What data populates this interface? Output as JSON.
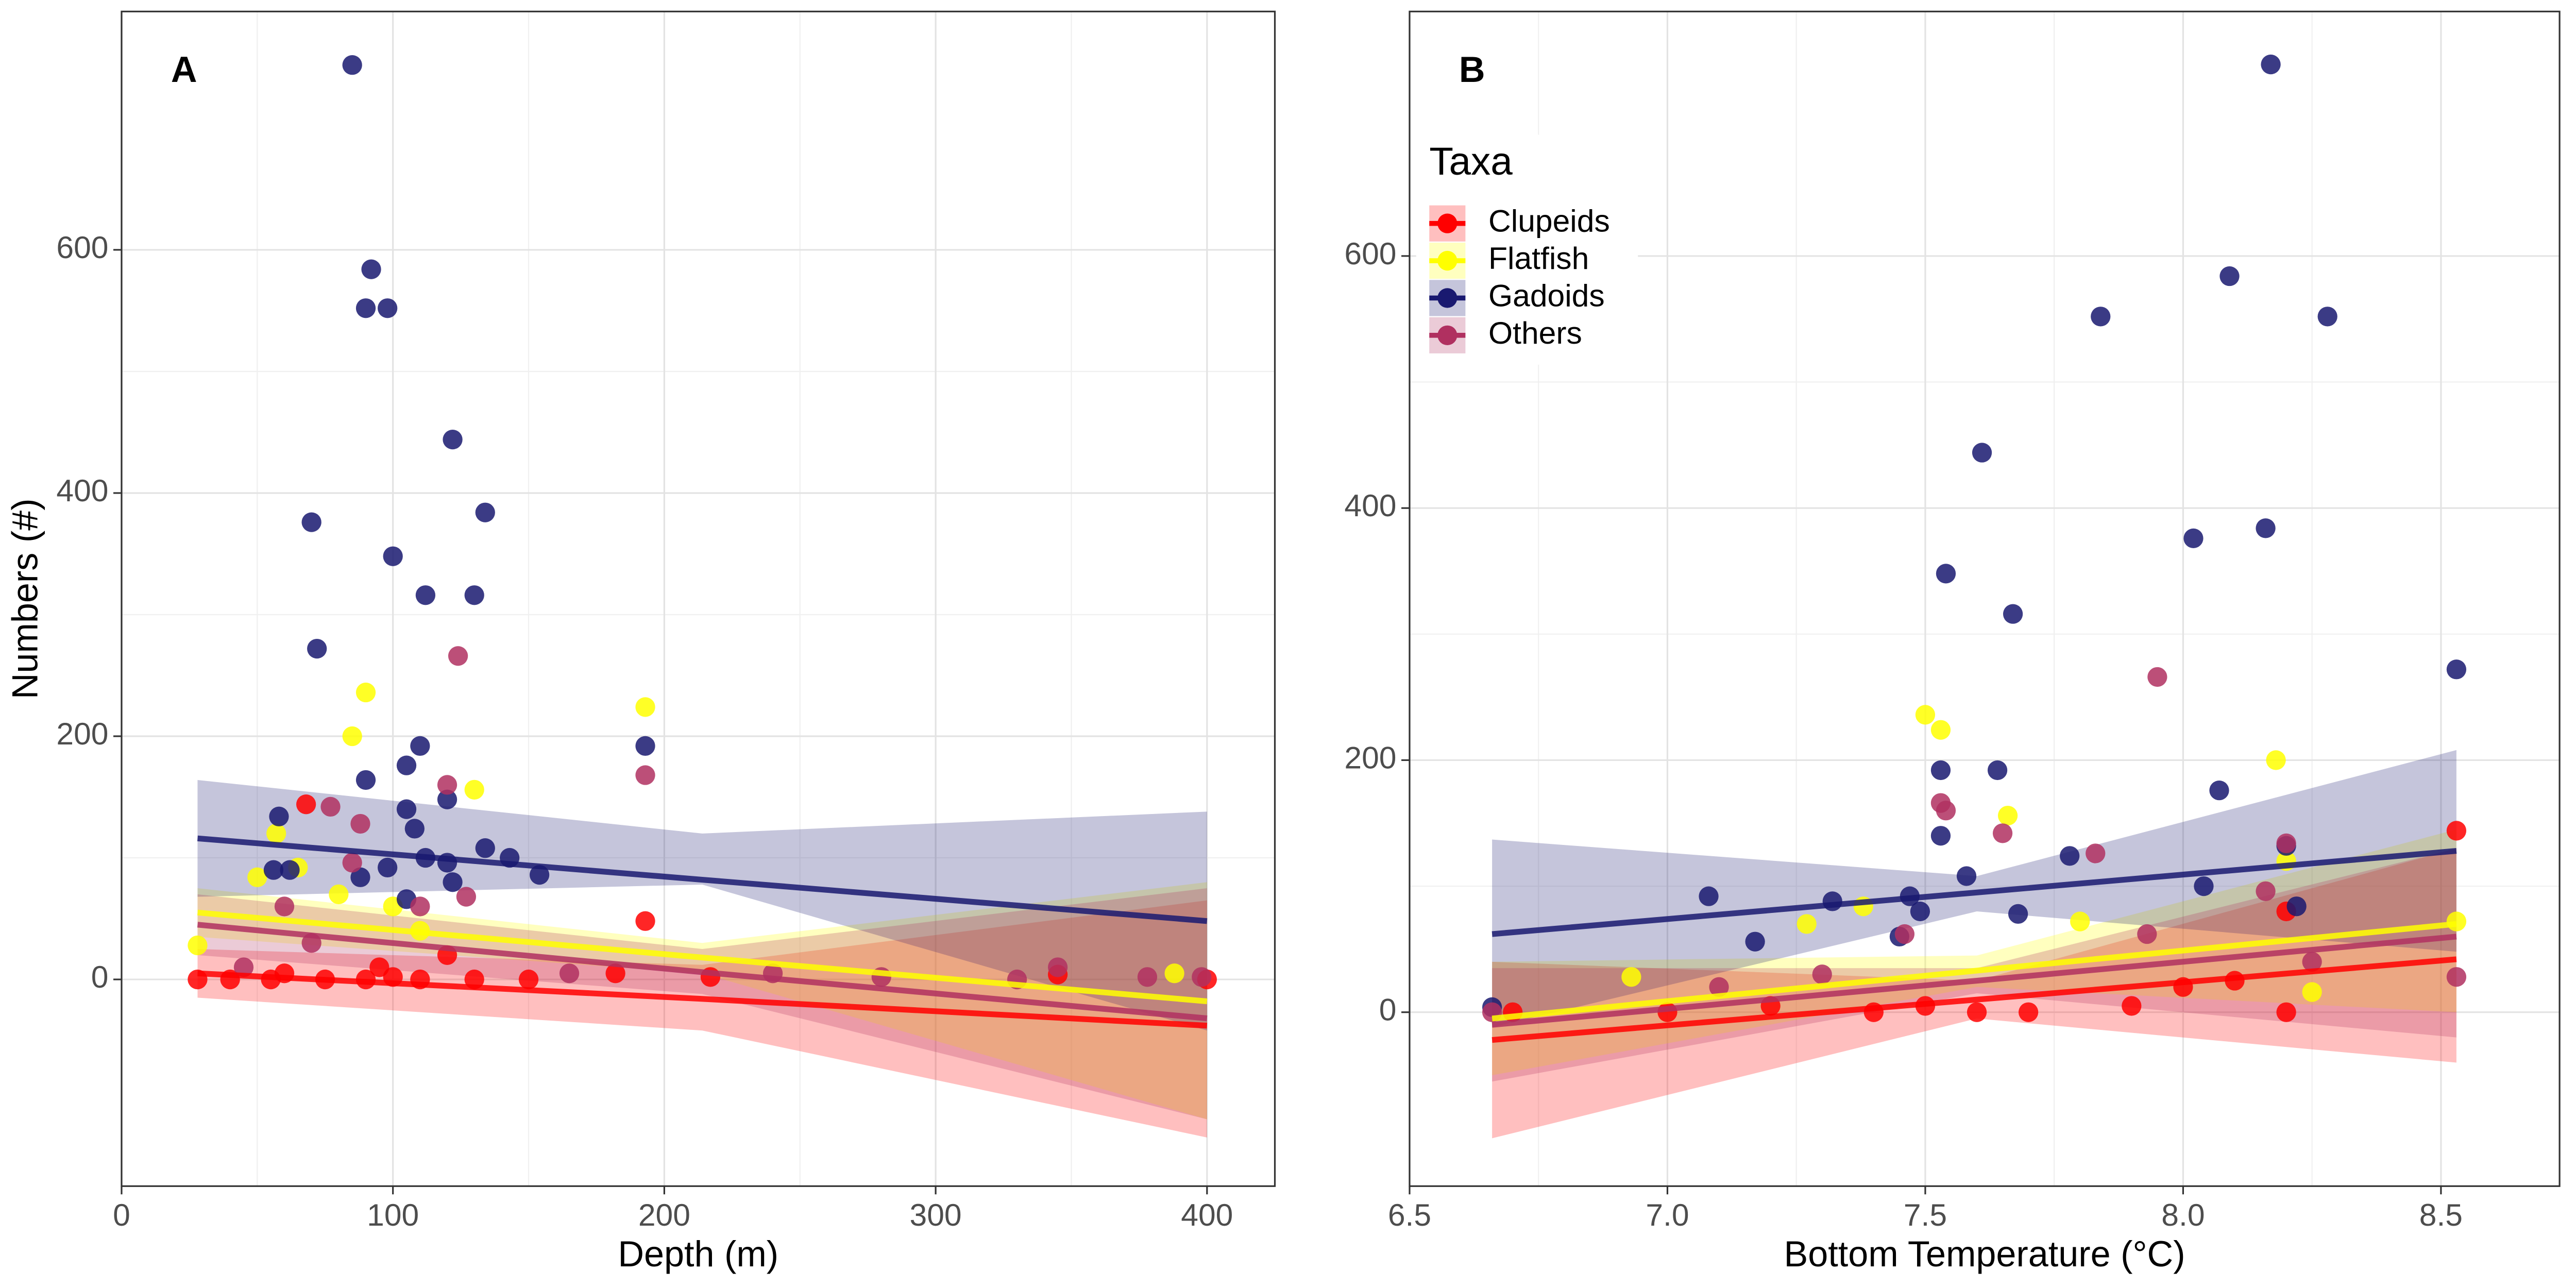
{
  "chart_data": [
    {
      "type": "scatter",
      "panel_label": "A",
      "x_label": "Depth (m)",
      "y_label": "Numbers (#)",
      "xlim": [
        0,
        425
      ],
      "ylim": [
        -170,
        796
      ],
      "xticks": [
        0,
        100,
        200,
        300,
        400
      ],
      "yticks": [
        0,
        200,
        400,
        600
      ],
      "grid": true,
      "series": [
        {
          "name": "Clupeids",
          "color": "#ff0000",
          "x": [
            68,
            193,
            28,
            40,
            55,
            75,
            90,
            100,
            110,
            130,
            150,
            182,
            217,
            345,
            400,
            120,
            95,
            60
          ],
          "values": [
            144,
            48,
            0,
            0,
            0,
            0,
            0,
            2,
            0,
            0,
            0,
            5,
            2,
            4,
            0,
            20,
            10,
            5
          ],
          "fit": {
            "x": [
              28,
              214,
              400
            ],
            "values": [
              5,
              -16,
              -38
            ],
            "upper": [
              25,
              12,
              65
            ],
            "lower": [
              -15,
              -42,
              -130
            ]
          }
        },
        {
          "name": "Flatfish",
          "color": "#ffff00",
          "x": [
            90,
            85,
            193,
            130,
            57,
            65,
            50,
            28,
            80,
            388,
            100,
            110
          ],
          "values": [
            236,
            200,
            224,
            156,
            120,
            92,
            84,
            28,
            70,
            5,
            60,
            40
          ],
          "fit": {
            "x": [
              28,
              214,
              400
            ],
            "values": [
              55,
              18,
              -18
            ],
            "upper": [
              75,
              30,
              80
            ],
            "lower": [
              35,
              5,
              -115
            ]
          }
        },
        {
          "name": "Gadoids",
          "color": "#191970",
          "x": [
            85,
            92,
            90,
            98,
            70,
            100,
            134,
            122,
            112,
            130,
            72,
            110,
            193,
            105,
            90,
            120,
            105,
            58,
            108,
            134,
            143,
            112,
            120,
            98,
            62,
            88,
            122,
            154,
            105,
            56
          ],
          "values": [
            752,
            584,
            552,
            552,
            376,
            348,
            384,
            444,
            316,
            316,
            272,
            192,
            192,
            176,
            164,
            148,
            140,
            134,
            124,
            108,
            100,
            100,
            96,
            92,
            90,
            84,
            80,
            86,
            66,
            90
          ],
          "fit": {
            "x": [
              28,
              214,
              400
            ],
            "values": [
              116,
              82,
              48
            ],
            "upper": [
              164,
              120,
              138
            ],
            "lower": [
              68,
              78,
              -42
            ]
          }
        },
        {
          "name": "Others",
          "color": "#b03060",
          "x": [
            124,
            193,
            120,
            77,
            88,
            85,
            60,
            110,
            127,
            240,
            280,
            330,
            345,
            378,
            398,
            165,
            45,
            70
          ],
          "values": [
            266,
            168,
            160,
            142,
            128,
            96,
            60,
            60,
            68,
            5,
            2,
            0,
            10,
            2,
            2,
            5,
            10,
            30
          ],
          "fit": {
            "x": [
              28,
              214,
              400
            ],
            "values": [
              45,
              6,
              -32
            ],
            "upper": [
              70,
              25,
              75
            ],
            "lower": [
              20,
              -12,
              -115
            ]
          }
        }
      ]
    },
    {
      "type": "scatter",
      "panel_label": "B",
      "x_label": "Bottom Temperature (°C)",
      "xlim": [
        6.5,
        8.73
      ],
      "ylim": [
        -138,
        794
      ],
      "xticks": [
        6.5,
        {
          "value": 7,
          "label": "7.0"
        },
        7.5,
        {
          "value": 8,
          "label": "8.0"
        },
        8.5
      ],
      "yticks": [
        0,
        200,
        400,
        600
      ],
      "grid": true,
      "legend": "top-left",
      "legend_title": "Taxa",
      "series": [
        {
          "name": "Clupeids",
          "color": "#ff0000",
          "x": [
            8.53,
            7.4,
            7.5,
            7.6,
            7.7,
            7.9,
            8.0,
            8.1,
            8.2,
            6.7,
            7.0,
            7.2,
            8.2
          ],
          "values": [
            144,
            0,
            5,
            0,
            0,
            5,
            20,
            25,
            0,
            0,
            0,
            5,
            80
          ],
          "fit": {
            "x": [
              6.66,
              7.6,
              8.53
            ],
            "values": [
              -22,
              10,
              42
            ],
            "upper": [
              40,
              25,
              130
            ],
            "lower": [
              -100,
              -5,
              -40
            ]
          }
        },
        {
          "name": "Flatfish",
          "color": "#ffff00",
          "x": [
            7.5,
            7.53,
            8.18,
            7.66,
            8.53,
            8.2,
            7.38,
            6.93,
            7.27,
            7.8,
            8.25
          ],
          "values": [
            236,
            224,
            200,
            156,
            72,
            120,
            84,
            28,
            70,
            72,
            16
          ],
          "fit": {
            "x": [
              6.66,
              7.6,
              8.53
            ],
            "values": [
              -5,
              33,
              70
            ],
            "upper": [
              40,
              45,
              145
            ],
            "lower": [
              -50,
              20,
              0
            ]
          }
        },
        {
          "name": "Gadoids",
          "color": "#191970",
          "x": [
            8.17,
            8.09,
            7.84,
            8.28,
            7.61,
            8.02,
            8.16,
            7.54,
            7.67,
            8.53,
            7.53,
            7.64,
            8.07,
            7.53,
            7.78,
            8.2,
            7.08,
            7.32,
            7.58,
            7.47,
            8.04,
            8.22,
            6.66,
            7.49,
            7.45,
            7.68,
            7.17
          ],
          "values": [
            752,
            584,
            552,
            552,
            444,
            376,
            384,
            348,
            316,
            272,
            192,
            192,
            176,
            140,
            124,
            132,
            92,
            88,
            108,
            92,
            100,
            84,
            4,
            80,
            60,
            78,
            56
          ],
          "fit": {
            "x": [
              6.66,
              7.6,
              8.53
            ],
            "values": [
              62,
              95,
              128
            ],
            "upper": [
              137,
              108,
              208
            ],
            "lower": [
              -12,
              80,
              48
            ]
          }
        },
        {
          "name": "Others",
          "color": "#b03060",
          "x": [
            7.95,
            7.53,
            7.54,
            7.65,
            7.83,
            8.2,
            8.16,
            8.53,
            7.46,
            7.93,
            8.25,
            7.3,
            7.1,
            6.66
          ],
          "values": [
            266,
            166,
            160,
            142,
            126,
            134,
            96,
            28,
            62,
            62,
            40,
            30,
            20,
            0
          ],
          "fit": {
            "x": [
              6.66,
              7.6,
              8.53
            ],
            "values": [
              -10,
              25,
              60
            ],
            "upper": [
              35,
              35,
              130
            ],
            "lower": [
              -55,
              15,
              -20
            ]
          }
        }
      ]
    }
  ]
}
